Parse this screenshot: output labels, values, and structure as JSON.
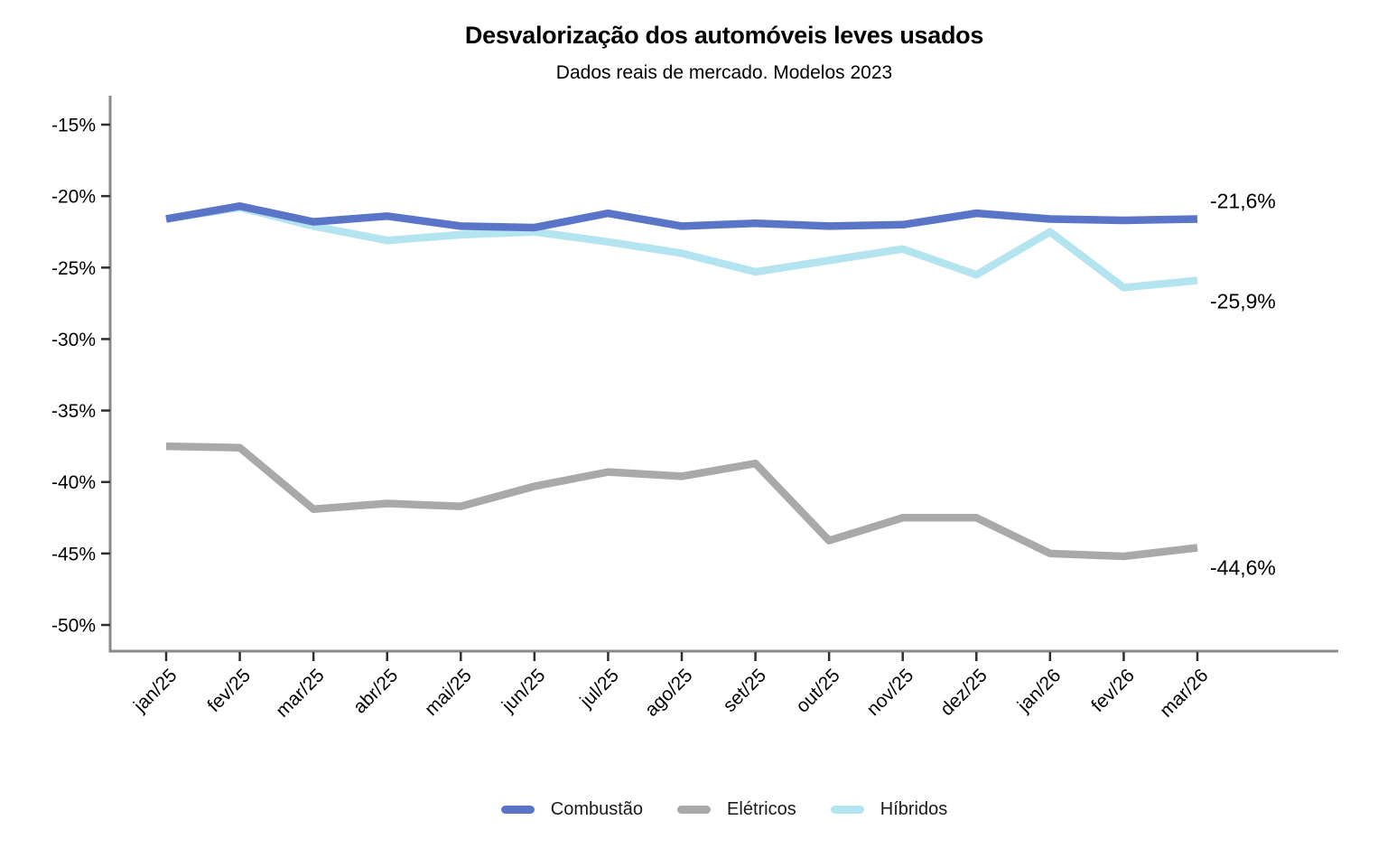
{
  "title": "Desvalorização dos automóveis leves usados",
  "subtitle": "Dados reais de mercado. Modelos 2023",
  "colors": {
    "axis_line": "#8A8A8A",
    "tick_mark": "#2F2F2F",
    "axis_text": "#000000",
    "end_label_text": "#000000"
  },
  "chart_data": {
    "type": "line",
    "title": "Desvalorização dos automóveis leves usados",
    "subtitle": "Dados reais de mercado. Modelos 2023",
    "xlabel": "",
    "ylabel": "",
    "grid": false,
    "legend_position": "bottom",
    "categories": [
      "jan/25",
      "fev/25",
      "mar/25",
      "abr/25",
      "mai/25",
      "jun/25",
      "jul/25",
      "ago/25",
      "set/25",
      "out/25",
      "nov/25",
      "dez/25",
      "jan/26",
      "fev/26",
      "mar/26"
    ],
    "y_tick_labels": [
      "-15%",
      "-20%",
      "-25%",
      "-30%",
      "-35%",
      "-40%",
      "-45%",
      "-50%"
    ],
    "y_tick_values": [
      -15,
      -20,
      -25,
      -30,
      -35,
      -40,
      -45,
      -50
    ],
    "ylim": [
      -52,
      -13
    ],
    "series": [
      {
        "name": "Combustão",
        "color": "#5A75C8",
        "end_label": "-21,6%",
        "values": [
          -21.6,
          -20.7,
          -21.8,
          -21.4,
          -22.1,
          -22.2,
          -21.2,
          -22.1,
          -21.9,
          -22.1,
          -22.0,
          -21.2,
          -21.6,
          -21.7,
          -21.6
        ]
      },
      {
        "name": "Elétricos",
        "color": "#A9A9A9",
        "end_label": "-44,6%",
        "values": [
          -37.5,
          -37.6,
          -41.9,
          -41.5,
          -41.7,
          -40.3,
          -39.3,
          -39.6,
          -38.7,
          -44.1,
          -42.5,
          -42.5,
          -45.0,
          -45.2,
          -44.6
        ]
      },
      {
        "name": "Híbridos",
        "color": "#B4E4EF",
        "end_label": "-25,9%",
        "values": [
          -21.6,
          -20.8,
          -22.1,
          -23.1,
          -22.7,
          -22.5,
          -23.2,
          -24.0,
          -25.3,
          -24.5,
          -23.7,
          -25.5,
          -22.5,
          -26.4,
          -25.9
        ]
      }
    ]
  }
}
